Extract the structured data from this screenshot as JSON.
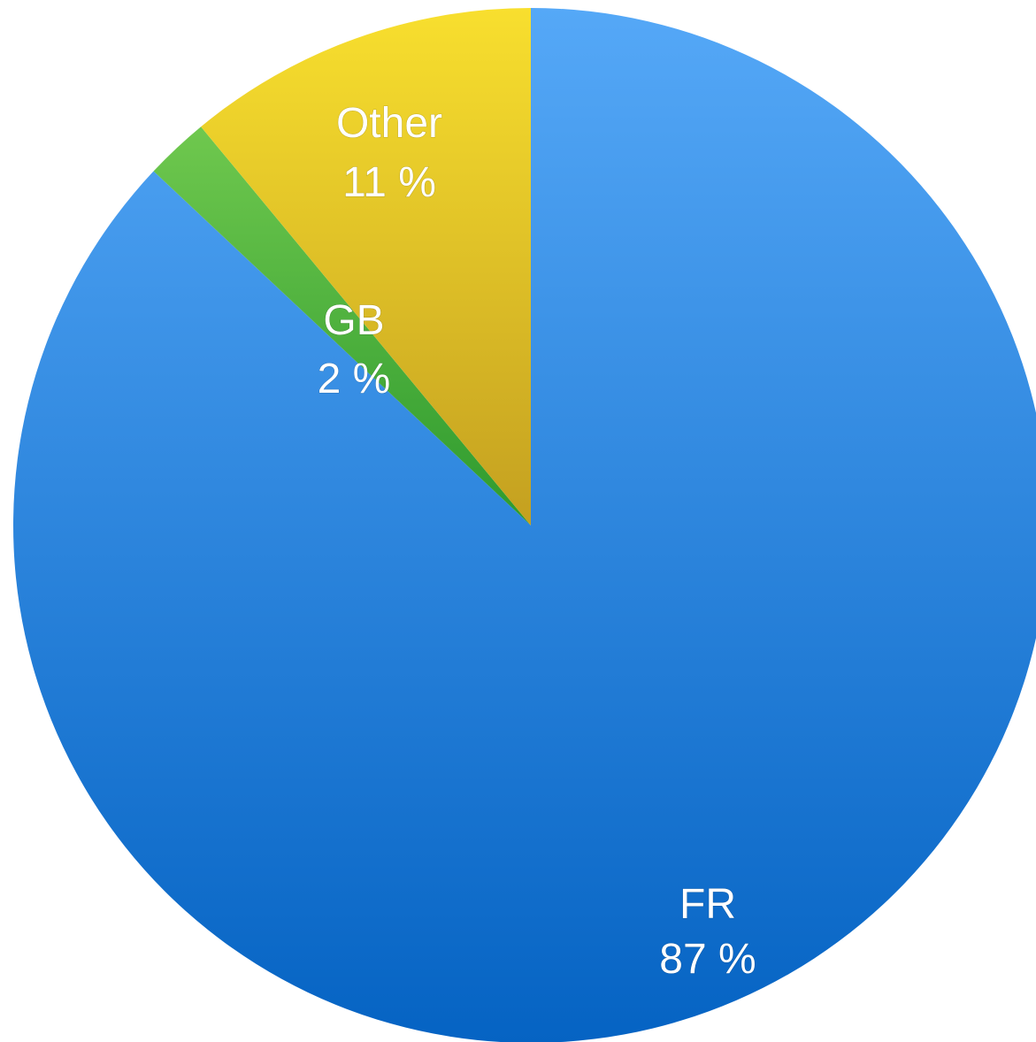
{
  "chart_data": {
    "type": "pie",
    "slices": [
      {
        "label": "FR",
        "value": 87,
        "value_label": "87 %",
        "color_top": "#55a8f7",
        "color_bottom": "#0563c3"
      },
      {
        "label": "GB",
        "value": 2,
        "value_label": "2 %",
        "color_top": "#6fc84e",
        "color_bottom": "#2e9a2e"
      },
      {
        "label": "Other",
        "value": 11,
        "value_label": "11 %",
        "color_top": "#f8df2e",
        "color_bottom": "#c4a020"
      }
    ],
    "start": "12 o'clock, clockwise",
    "legend": "none"
  }
}
